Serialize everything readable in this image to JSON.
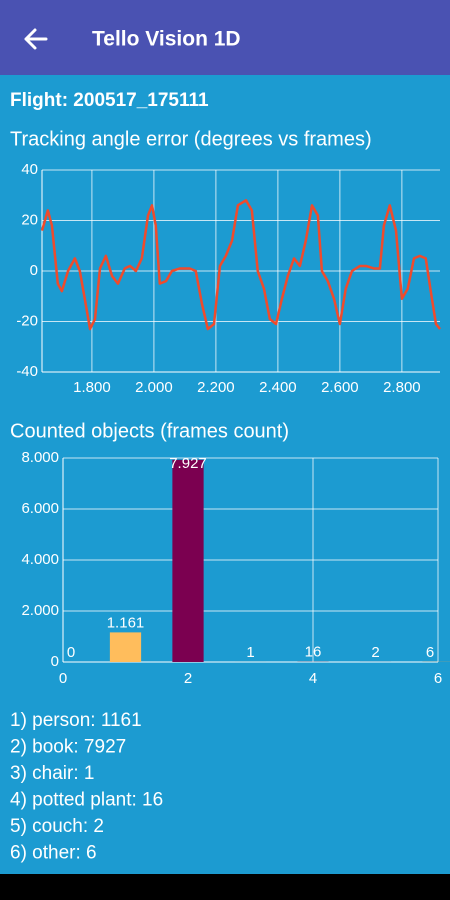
{
  "header": {
    "title": "Tello Vision 1D"
  },
  "flight_label": "Flight: 200517_175111",
  "chart_data": [
    {
      "type": "line",
      "title": "Tracking angle error (degrees vs frames)",
      "x": [
        1639,
        1658,
        1671,
        1690,
        1703,
        1723,
        1745,
        1761,
        1777,
        1794,
        1810,
        1826,
        1845,
        1865,
        1884,
        1906,
        1923,
        1942,
        1961,
        1981,
        1994,
        2006,
        2019,
        2039,
        2058,
        2084,
        2116,
        2135,
        2155,
        2174,
        2194,
        2213,
        2232,
        2252,
        2271,
        2297,
        2316,
        2335,
        2355,
        2374,
        2394,
        2413,
        2432,
        2452,
        2471,
        2490,
        2510,
        2529,
        2542,
        2561,
        2581,
        2600,
        2619,
        2639,
        2665,
        2684,
        2710,
        2729,
        2742,
        2761,
        2781,
        2800,
        2819,
        2839,
        2858,
        2877,
        2897,
        2910,
        2923
      ],
      "values": [
        16,
        24,
        18,
        -5,
        -8,
        0,
        5,
        0,
        -11,
        -23,
        -19,
        1,
        6,
        -2,
        -5,
        1,
        2,
        0,
        5,
        22,
        26,
        18,
        -5,
        -4,
        0,
        1,
        1,
        0,
        -13,
        -23,
        -21,
        2,
        6,
        12,
        26,
        28,
        24,
        0,
        -7,
        -19,
        -21,
        -11,
        -2,
        5,
        2,
        12,
        26,
        22,
        0,
        -4,
        -11,
        -21,
        -7,
        0,
        2,
        2,
        1,
        1,
        18,
        26,
        16,
        -11,
        -7,
        5,
        6,
        5,
        -11,
        -21,
        -23
      ],
      "color": "#ef4b2c",
      "xlim": [
        1639,
        2923
      ],
      "xticks": [
        {
          "value": 1800,
          "label": "1.800"
        },
        {
          "value": 2000,
          "label": "2.000"
        },
        {
          "value": 2200,
          "label": "2.200"
        },
        {
          "value": 2400,
          "label": "2.400"
        },
        {
          "value": 2600,
          "label": "2.600"
        },
        {
          "value": 2800,
          "label": "2.800"
        }
      ],
      "ylim": [
        -40,
        40
      ],
      "yticks": [
        -40,
        -20,
        0,
        20,
        40
      ],
      "grid": true
    },
    {
      "type": "bar",
      "title": "Counted objects (frames count)",
      "x": [
        0,
        1,
        2,
        3,
        4,
        5,
        6
      ],
      "values": [
        0,
        1161,
        7927,
        1,
        16,
        2,
        6
      ],
      "value_labels": [
        "0",
        "1.161",
        "7.927",
        "1",
        "16",
        "2",
        "6"
      ],
      "colors": [
        "#c12552",
        "#ffbd5c",
        "#7b0050",
        "#ff6f00",
        "#ffb8b8",
        "#c83737",
        "#ff9f40"
      ],
      "xlim": [
        0,
        6
      ],
      "xticks": [
        0,
        2,
        4,
        6
      ],
      "ylim": [
        0,
        8000
      ],
      "yticks": [
        0,
        {
          "value": 2000,
          "label": "2.000"
        },
        {
          "value": 4000,
          "label": "4.000"
        },
        {
          "value": 6000,
          "label": "6.000"
        },
        {
          "value": 8000,
          "label": "8.000"
        }
      ],
      "grid": true
    }
  ],
  "summary": [
    "1) person: 1161",
    "2) book: 7927",
    "3) chair: 1",
    "4) potted plant: 16",
    "5) couch: 2",
    "6) other: 6"
  ]
}
